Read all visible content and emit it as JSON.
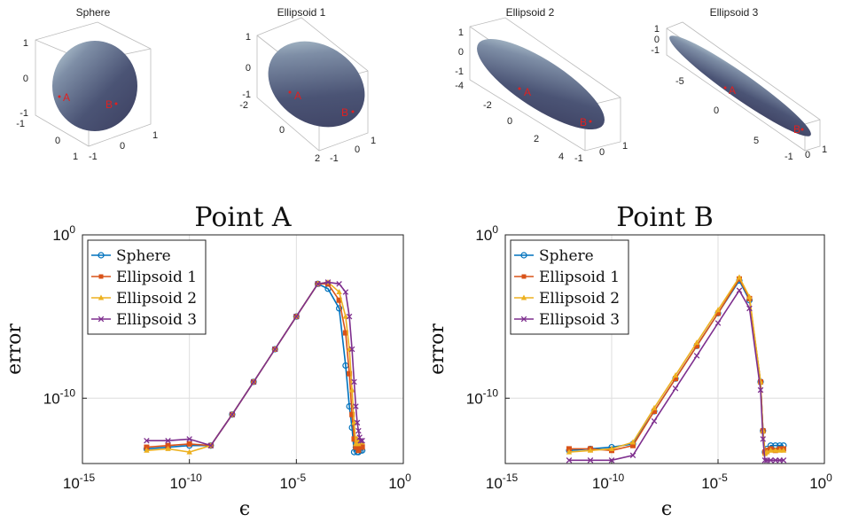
{
  "shapes": [
    {
      "title": "Sphere",
      "labels": {
        "A": "A",
        "B": "B"
      },
      "ticks_z": [
        "1",
        "0",
        "-1"
      ],
      "ticks_x": [
        "-1",
        "0",
        "1"
      ],
      "ticks_y": [
        "-1",
        "0",
        "1"
      ]
    },
    {
      "title": "Ellipsoid 1",
      "labels": {
        "A": "A",
        "B": "B"
      },
      "ticks_z": [
        "1",
        "0",
        "-1"
      ],
      "ticks_x": [
        "-2",
        "0",
        "2"
      ],
      "ticks_y": [
        "-1",
        "0",
        "1"
      ]
    },
    {
      "title": "Ellipsoid 2",
      "labels": {
        "A": "A",
        "B": "B"
      },
      "ticks_z": [
        "1",
        "0",
        "-1"
      ],
      "ticks_x": [
        "-4",
        "-2",
        "0",
        "2",
        "4"
      ],
      "ticks_y": [
        "-1",
        "0",
        "1"
      ]
    },
    {
      "title": "Ellipsoid 3",
      "labels": {
        "A": "A",
        "B": "B"
      },
      "ticks_z": [
        "1",
        "0",
        "-1"
      ],
      "ticks_x": [
        "-5",
        "0",
        "5"
      ],
      "ticks_y": [
        "-1",
        "0",
        "1"
      ]
    }
  ],
  "colors": {
    "sphere": "#0072BD",
    "ellipsoid1": "#D95319",
    "ellipsoid2": "#EDB120",
    "ellipsoid3": "#7E2F8E"
  },
  "chart_data": [
    {
      "type": "line",
      "title": "Point A",
      "xlabel": "ϵ",
      "ylabel": "error",
      "xscale": "log",
      "yscale": "log",
      "xlim": [
        1e-15,
        1
      ],
      "ylim": [
        1e-14,
        1
      ],
      "xticks": [
        "10^-15",
        "10^-10",
        "10^-5",
        "10^0"
      ],
      "yticks": [
        "10^0",
        "10^-10"
      ],
      "grid": true,
      "legend_position": "top-left",
      "series": [
        {
          "name": "Sphere",
          "marker": "circle",
          "x": [
            1e-12,
            1e-11,
            1e-10,
            1e-09,
            1e-08,
            1e-07,
            1e-06,
            1e-05,
            0.0001,
            0.0003,
            0.001,
            0.002,
            0.003,
            0.004,
            0.005,
            0.006,
            0.007,
            0.008,
            0.009,
            0.01,
            0.012
          ],
          "log10_y": [
            -13.1,
            -13.0,
            -12.9,
            -12.9,
            -11.0,
            -9.0,
            -7.0,
            -5.0,
            -3.0,
            -3.3,
            -4.5,
            -8.0,
            -10.5,
            -11.8,
            -13.3,
            -13.0,
            -13.3,
            -13.3,
            -13.1,
            -13.2,
            -13.2
          ]
        },
        {
          "name": "Ellipsoid 1",
          "marker": "square",
          "x": [
            1e-12,
            1e-11,
            1e-10,
            1e-09,
            1e-08,
            1e-07,
            1e-06,
            1e-05,
            0.0001,
            0.0003,
            0.001,
            0.002,
            0.003,
            0.004,
            0.005,
            0.006,
            0.007,
            0.008,
            0.009,
            0.01,
            0.012
          ],
          "log10_y": [
            -13.0,
            -12.9,
            -12.8,
            -12.9,
            -11.0,
            -9.0,
            -7.0,
            -5.0,
            -3.0,
            -3.0,
            -4.0,
            -6.0,
            -8.5,
            -11.0,
            -12.5,
            -13.0,
            -12.6,
            -13.2,
            -12.8,
            -13.0,
            -13.0
          ]
        },
        {
          "name": "Ellipsoid 2",
          "marker": "triangle",
          "x": [
            1e-12,
            1e-11,
            1e-10,
            1e-09,
            1e-08,
            1e-07,
            1e-06,
            1e-05,
            0.0001,
            0.0003,
            0.001,
            0.002,
            0.003,
            0.004,
            0.005,
            0.006,
            0.007,
            0.008,
            0.009,
            0.01,
            0.012
          ],
          "log10_y": [
            -13.2,
            -13.1,
            -13.3,
            -12.9,
            -11.0,
            -9.0,
            -7.0,
            -5.0,
            -3.0,
            -2.9,
            -3.5,
            -5.0,
            -7.0,
            -9.5,
            -11.5,
            -12.8,
            -12.5,
            -12.8,
            -12.6,
            -12.7,
            -12.7
          ]
        },
        {
          "name": "Ellipsoid 3",
          "marker": "x",
          "x": [
            1e-12,
            1e-11,
            1e-10,
            1e-09,
            1e-08,
            1e-07,
            1e-06,
            1e-05,
            0.0001,
            0.0003,
            0.001,
            0.002,
            0.003,
            0.004,
            0.005,
            0.006,
            0.007,
            0.008,
            0.009,
            0.01,
            0.012
          ],
          "log10_y": [
            -12.6,
            -12.6,
            -12.5,
            -12.9,
            -11.0,
            -9.0,
            -7.0,
            -5.0,
            -3.0,
            -2.9,
            -3.0,
            -3.5,
            -5.0,
            -7.0,
            -9.0,
            -10.5,
            -11.5,
            -12.0,
            -12.4,
            -12.6,
            -12.6
          ]
        }
      ]
    },
    {
      "type": "line",
      "title": "Point B",
      "xlabel": "ϵ",
      "ylabel": "error",
      "xscale": "log",
      "yscale": "log",
      "xlim": [
        1e-15,
        1
      ],
      "ylim": [
        1e-14,
        1
      ],
      "xticks": [
        "10^-15",
        "10^-10",
        "10^-5",
        "10^0"
      ],
      "yticks": [
        "10^0",
        "10^-10"
      ],
      "grid": true,
      "legend_position": "top-left",
      "series": [
        {
          "name": "Sphere",
          "marker": "circle",
          "x": [
            1e-12,
            1e-11,
            1e-10,
            1e-09,
            1e-08,
            1e-07,
            1e-06,
            1e-05,
            0.0001,
            0.0003,
            0.001,
            0.0013,
            0.0016,
            0.002,
            0.003,
            0.005,
            0.008,
            0.012
          ],
          "log10_y": [
            -13.2,
            -13.1,
            -13.0,
            -12.8,
            -10.8,
            -8.8,
            -6.8,
            -4.8,
            -2.8,
            -4.0,
            -9.0,
            -12.0,
            -13.3,
            -13.1,
            -12.9,
            -12.9,
            -12.9,
            -12.9
          ]
        },
        {
          "name": "Ellipsoid 1",
          "marker": "square",
          "x": [
            1e-12,
            1e-11,
            1e-10,
            1e-09,
            1e-08,
            1e-07,
            1e-06,
            1e-05,
            0.0001,
            0.0003,
            0.001,
            0.0013,
            0.0016,
            0.002,
            0.003,
            0.005,
            0.008,
            0.012
          ],
          "log10_y": [
            -13.1,
            -13.1,
            -13.2,
            -12.9,
            -10.8,
            -8.8,
            -6.8,
            -4.8,
            -2.7,
            -3.9,
            -9.0,
            -12.0,
            -13.3,
            -13.2,
            -13.1,
            -13.2,
            -13.1,
            -13.1
          ]
        },
        {
          "name": "Ellipsoid 2",
          "marker": "triangle",
          "x": [
            1e-12,
            1e-11,
            1e-10,
            1e-09,
            1e-08,
            1e-07,
            1e-06,
            1e-05,
            0.0001,
            0.0003,
            0.001,
            0.0013,
            0.0016,
            0.002,
            0.003,
            0.005,
            0.008,
            0.012
          ],
          "log10_y": [
            -13.3,
            -13.2,
            -13.1,
            -12.7,
            -10.6,
            -8.6,
            -6.6,
            -4.6,
            -2.6,
            -3.8,
            -9.0,
            -12.0,
            -13.4,
            -13.3,
            -13.2,
            -13.2,
            -13.2,
            -13.2
          ]
        },
        {
          "name": "Ellipsoid 3",
          "marker": "x",
          "x": [
            1e-12,
            1e-11,
            1e-10,
            1e-09,
            1e-08,
            1e-07,
            1e-06,
            1e-05,
            0.0001,
            0.0003,
            0.001,
            0.0013,
            0.0016,
            0.002,
            0.003,
            0.005,
            0.008,
            0.012
          ],
          "log10_y": [
            -13.8,
            -13.8,
            -13.8,
            -13.5,
            -11.4,
            -9.4,
            -7.4,
            -5.4,
            -3.4,
            -4.5,
            -9.5,
            -12.5,
            -13.8,
            -13.8,
            -13.8,
            -13.8,
            -13.8,
            -13.8
          ]
        }
      ]
    }
  ]
}
